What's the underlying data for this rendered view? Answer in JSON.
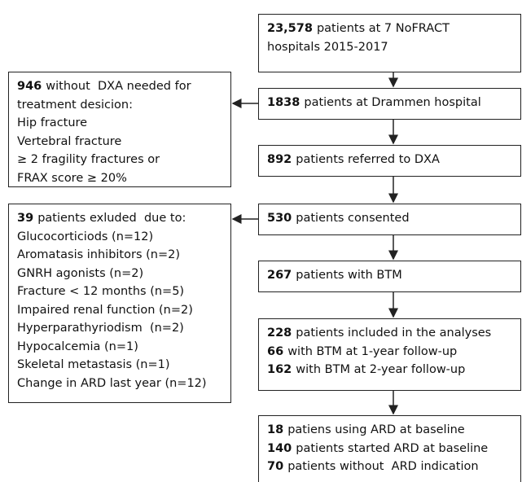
{
  "nodes": [
    {
      "lines": [
        {
          "bold": "23,578",
          "text": "patients at 7 NoFRACT"
        },
        {
          "text": "hospitals 2015-2017"
        }
      ]
    },
    {
      "lines": [
        {
          "bold": "1838",
          "text": "patients at Drammen hospital"
        }
      ]
    },
    {
      "lines": [
        {
          "bold": "892",
          "text": "patients referred to DXA"
        }
      ]
    },
    {
      "lines": [
        {
          "bold": "530",
          "text": "patients consented"
        }
      ]
    },
    {
      "lines": [
        {
          "bold": "267",
          "text": "patients with BTM"
        }
      ]
    },
    {
      "lines": [
        {
          "bold": "228",
          "text": "patients included in the analyses"
        },
        {
          "bold": "66",
          "text": "with BTM at 1-year follow-up"
        },
        {
          "bold": "162",
          "text": "with BTM at 2-year follow-up"
        }
      ]
    },
    {
      "lines": [
        {
          "bold": "18",
          "text": "patiens using ARD at baseline"
        },
        {
          "bold": "140",
          "text": "patients started ARD at baseline"
        },
        {
          "bold": "70",
          "text": "patients without  ARD indication"
        }
      ]
    },
    {
      "lines": [
        {
          "bold": "946",
          "text": "without  DXA needed for"
        },
        {
          "text": "treatment desicion:"
        },
        {
          "text": "Hip fracture"
        },
        {
          "text": "Vertebral fracture"
        },
        {
          "text": "≥ 2 fragility fractures or"
        },
        {
          "text": "FRAX score ≥ 20%"
        }
      ]
    },
    {
      "lines": [
        {
          "bold": "39",
          "text": "patients exluded  due to:"
        },
        {
          "text": "Glucocorticiods (n=12)"
        },
        {
          "text": "Aromatasis inhibitors (n=2)"
        },
        {
          "text": "GNRH agonists (n=2)"
        },
        {
          "text": "Fracture < 12 months (n=5)"
        },
        {
          "text": "Impaired renal function (n=2)"
        },
        {
          "text": "Hyperparathyriodism  (n=2)"
        },
        {
          "text": "Hypocalcemia (n=1)"
        },
        {
          "text": "Skeletal metastasis (n=1)"
        },
        {
          "text": "Change in ARD last year (n=12)"
        }
      ]
    }
  ]
}
